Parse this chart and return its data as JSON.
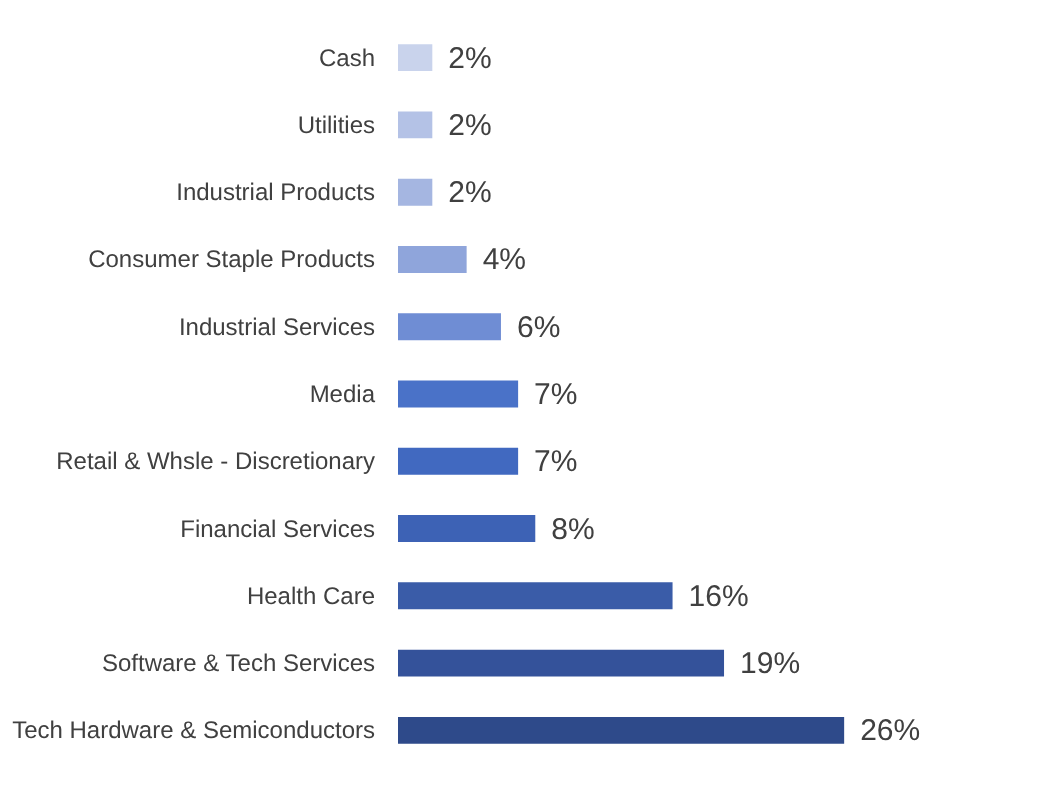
{
  "chart_data": {
    "type": "bar",
    "orientation": "horizontal",
    "categories": [
      "Cash",
      "Utilities",
      "Industrial Products",
      "Consumer Staple Products",
      "Industrial Services",
      "Media",
      "Retail & Whsle - Discretionary",
      "Financial Services",
      "Health Care",
      "Software & Tech Services",
      "Tech Hardware & Semiconductors"
    ],
    "values": [
      2,
      2,
      2,
      4,
      6,
      7,
      7,
      8,
      16,
      19,
      26
    ],
    "value_labels": [
      "2%",
      "2%",
      "2%",
      "4%",
      "6%",
      "7%",
      "7%",
      "8%",
      "16%",
      "19%",
      "26%"
    ],
    "colors": [
      "#c9d3ec",
      "#b4c2e6",
      "#a5b6e1",
      "#8fa5db",
      "#6f8dd4",
      "#4a72c8",
      "#4169c0",
      "#3d62b5",
      "#3a5ca8",
      "#34529a",
      "#2e4a8a"
    ],
    "grid": false
  }
}
